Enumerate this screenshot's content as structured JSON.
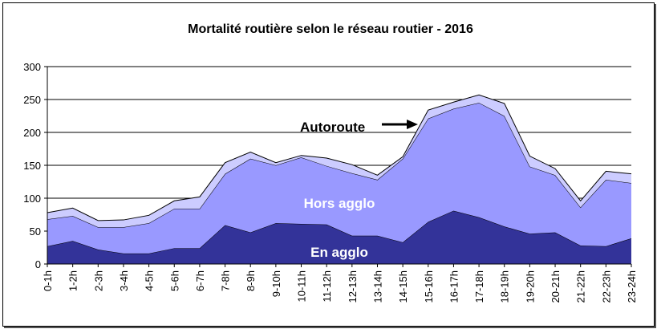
{
  "chart_data": {
    "type": "area",
    "stacked": true,
    "title": "Mortalité routière selon le réseau routier - 2016",
    "categories": [
      "0-1h",
      "1-2h",
      "2-3h",
      "3-4h",
      "4-5h",
      "5-6h",
      "6-7h",
      "7-8h",
      "8-9h",
      "9-10h",
      "10-11h",
      "11-12h",
      "12-13h",
      "13-14h",
      "14-15h",
      "15-16h",
      "16-17h",
      "17-18h",
      "18-19h",
      "19-20h",
      "20-21h",
      "21-22h",
      "22-23h",
      "23-24h"
    ],
    "ylim": [
      0,
      300
    ],
    "yticks": [
      0,
      50,
      100,
      150,
      200,
      250,
      300
    ],
    "grid": true,
    "series": [
      {
        "name": "En agglo",
        "color": "#333399",
        "values": [
          27,
          35,
          22,
          16,
          16,
          24,
          24,
          59,
          48,
          62,
          61,
          60,
          43,
          43,
          33,
          64,
          81,
          71,
          57,
          46,
          48,
          28,
          27,
          39
        ]
      },
      {
        "name": "Hors agglo",
        "color": "#9999ff",
        "values": [
          41,
          38,
          34,
          40,
          46,
          60,
          60,
          78,
          112,
          88,
          101,
          89,
          95,
          85,
          127,
          157,
          155,
          174,
          168,
          102,
          87,
          58,
          101,
          84
        ]
      },
      {
        "name": "Autoroute",
        "color": "#ccccff",
        "values": [
          10,
          12,
          10,
          11,
          12,
          12,
          18,
          17,
          10,
          4,
          3,
          12,
          13,
          7,
          3,
          13,
          10,
          12,
          19,
          16,
          10,
          10,
          13,
          14
        ]
      }
    ],
    "annotations": {
      "autoroute": "Autoroute",
      "hors": "Hors agglo",
      "en": "En agglo"
    }
  }
}
